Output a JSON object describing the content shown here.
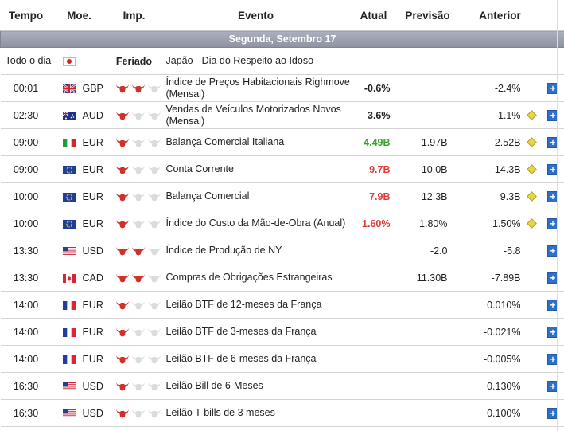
{
  "header": {
    "time": "Tempo",
    "currency": "Moe.",
    "importance": "Imp.",
    "event": "Evento",
    "actual": "Atual",
    "forecast": "Previsão",
    "previous": "Anterior"
  },
  "date_row": "Segunda, Setembro 17",
  "holiday": {
    "time": "Todo o dia",
    "flag": "jp-flag",
    "label": "Feriado",
    "event": "Japão - Dia do Respeito ao Idoso"
  },
  "events": [
    {
      "time": "00:01",
      "flag": "uk",
      "currency": "GBP",
      "bulls": 2,
      "event": "Índice de Preços Habitacionais Righmove (Mensal)",
      "actual": "-0.6%",
      "actual_color": "neutral",
      "forecast": "",
      "previous": "-2.4%",
      "revised": false
    },
    {
      "time": "02:30",
      "flag": "au",
      "currency": "AUD",
      "bulls": 1,
      "event": "Vendas de Veículos Motorizados Novos (Mensal)",
      "actual": "3.6%",
      "actual_color": "neutral",
      "forecast": "",
      "previous": "-1.1%",
      "revised": true
    },
    {
      "time": "09:00",
      "flag": "it",
      "currency": "EUR",
      "bulls": 1,
      "event": "Balança Comercial Italiana",
      "actual": "4.49B",
      "actual_color": "up",
      "forecast": "1.97B",
      "previous": "2.52B",
      "revised": true
    },
    {
      "time": "09:00",
      "flag": "eu",
      "currency": "EUR",
      "bulls": 1,
      "event": "Conta Corrente",
      "actual": "9.7B",
      "actual_color": "down",
      "forecast": "10.0B",
      "previous": "14.3B",
      "revised": true
    },
    {
      "time": "10:00",
      "flag": "eu",
      "currency": "EUR",
      "bulls": 1,
      "event": "Balança Comercial",
      "actual": "7.9B",
      "actual_color": "down",
      "forecast": "12.3B",
      "previous": "9.3B",
      "revised": true
    },
    {
      "time": "10:00",
      "flag": "eu",
      "currency": "EUR",
      "bulls": 1,
      "event": "Índice do Custo da Mão-de-Obra (Anual)",
      "actual": "1.60%",
      "actual_color": "down",
      "forecast": "1.80%",
      "previous": "1.50%",
      "revised": true
    },
    {
      "time": "13:30",
      "flag": "us",
      "currency": "USD",
      "bulls": 2,
      "event": "Índice de Produção de NY",
      "actual": "",
      "actual_color": "neutral",
      "forecast": "-2.0",
      "previous": "-5.8",
      "revised": false
    },
    {
      "time": "13:30",
      "flag": "ca",
      "currency": "CAD",
      "bulls": 2,
      "event": "Compras de Obrigações Estrangeiras",
      "actual": "",
      "actual_color": "neutral",
      "forecast": "11.30B",
      "previous": "-7.89B",
      "revised": false
    },
    {
      "time": "14:00",
      "flag": "fr",
      "currency": "EUR",
      "bulls": 1,
      "event": "Leilão BTF de 12-meses da França",
      "actual": "",
      "actual_color": "neutral",
      "forecast": "",
      "previous": "0.010%",
      "revised": false
    },
    {
      "time": "14:00",
      "flag": "fr",
      "currency": "EUR",
      "bulls": 1,
      "event": "Leilão BTF de 3-meses da França",
      "actual": "",
      "actual_color": "neutral",
      "forecast": "",
      "previous": "-0.021%",
      "revised": false
    },
    {
      "time": "14:00",
      "flag": "fr",
      "currency": "EUR",
      "bulls": 1,
      "event": "Leilão BTF de 6-meses da França",
      "actual": "",
      "actual_color": "neutral",
      "forecast": "",
      "previous": "-0.005%",
      "revised": false
    },
    {
      "time": "16:30",
      "flag": "us",
      "currency": "USD",
      "bulls": 1,
      "event": "Leilão Bill de 6-Meses",
      "actual": "",
      "actual_color": "neutral",
      "forecast": "",
      "previous": "0.130%",
      "revised": false
    },
    {
      "time": "16:30",
      "flag": "us",
      "currency": "USD",
      "bulls": 1,
      "event": "Leilão T-bills de 3 meses",
      "actual": "",
      "actual_color": "neutral",
      "forecast": "",
      "previous": "0.100%",
      "revised": false
    }
  ],
  "colors": {
    "up": "#3aa52a",
    "down": "#e03b3b",
    "bull_active": "#d0322a",
    "bull_inactive": "#dcdcdc",
    "plus": "#2f6fc7"
  },
  "plus_symbol": "+"
}
